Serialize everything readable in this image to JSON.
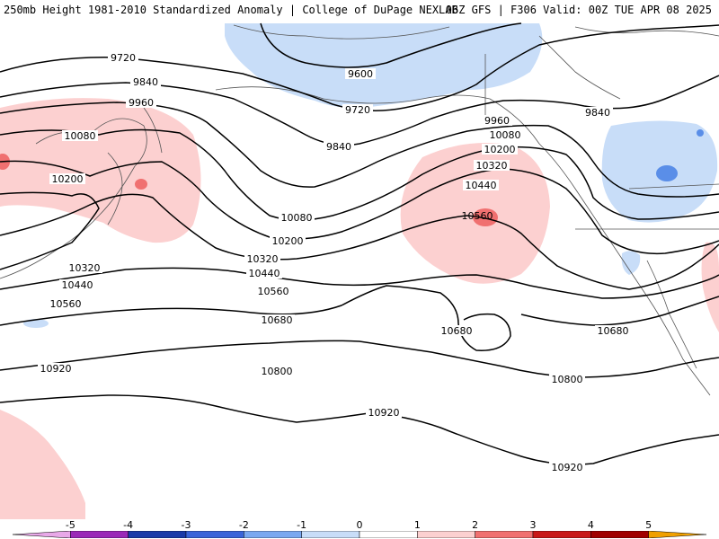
{
  "header": {
    "title_left": "250mb Height 1981-2010 Standardized Anomaly | College of DuPage NEXLAB",
    "title_right": "06Z GFS | F306 Valid: 00Z TUE APR 08 2025"
  },
  "contour_labels": [
    "9720",
    "9600",
    "9720",
    "9840",
    "9840",
    "9840",
    "9960",
    "9960",
    "10080",
    "10080",
    "10080",
    "10200",
    "10200",
    "10200",
    "10320",
    "10320",
    "10320",
    "10440",
    "10440",
    "10440",
    "10560",
    "10560",
    "10560",
    "10680",
    "10680",
    "10680",
    "10800",
    "10800",
    "10920",
    "10920",
    "10920"
  ],
  "colorbar": {
    "ticks": [
      "-5",
      "-4",
      "-3",
      "-2",
      "-1",
      "0",
      "1",
      "2",
      "3",
      "4",
      "5"
    ],
    "colors": [
      "#e8a8e8",
      "#9a2ab8",
      "#1a3aa8",
      "#3a64d8",
      "#7aa8f0",
      "#c8ddf8",
      "#ffffff",
      "#fcd0d0",
      "#f07070",
      "#c81818",
      "#a00000",
      "#f0a000"
    ]
  },
  "anomaly_colors": {
    "positive_light": "#fcd0d0",
    "positive_medium": "#f07070",
    "negative_light": "#c8ddf8",
    "negative_medium": "#5a8ee8"
  }
}
